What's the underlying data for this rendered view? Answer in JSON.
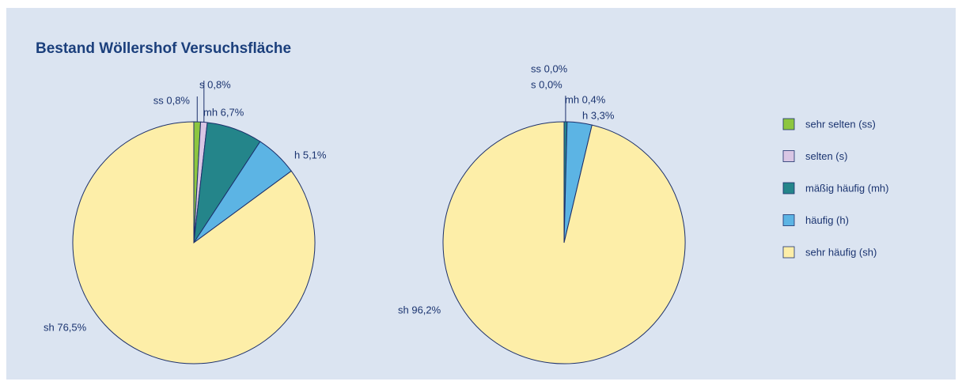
{
  "title": "Bestand Wöllershof Versuchsfläche",
  "legend": {
    "labels": [
      "sehr selten (ss)",
      "selten (s)",
      "mäßig häufig (mh)",
      "häufig (h)",
      "sehr häufig (sh)"
    ],
    "colors": [
      "#8dc63f",
      "#d9c6e4",
      "#24858a",
      "#5cb4e4",
      "#fdeea8"
    ]
  },
  "chart_data": [
    {
      "type": "pie",
      "values": [
        0.8,
        0.8,
        6.7,
        5.1,
        76.5
      ],
      "value_labels": [
        "ss 0,8%",
        "s 0,8%",
        "mh 6,7%",
        "h 5,1%",
        "sh 76,5%"
      ]
    },
    {
      "type": "pie",
      "values": [
        0.0,
        0.0,
        0.4,
        3.3,
        96.2
      ],
      "value_labels": [
        "ss 0,0%",
        "s 0,0%",
        "mh 0,4%",
        "h 3,3%",
        "sh 96,2%"
      ]
    }
  ]
}
